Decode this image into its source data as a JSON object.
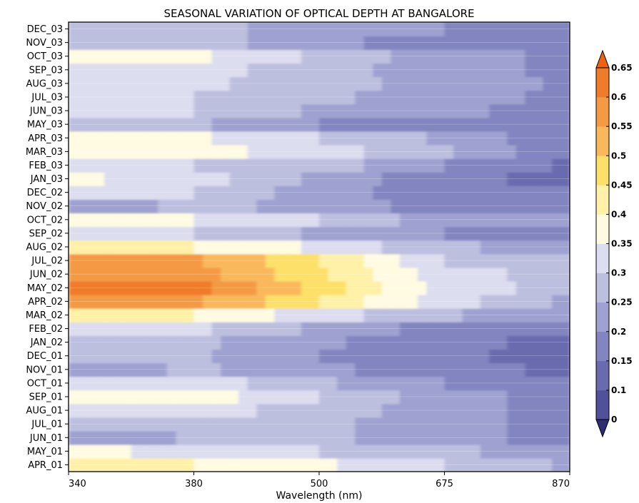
{
  "chart_data": {
    "type": "heatmap",
    "title": "SEASONAL VARIATION OF OPTICAL DEPTH AT BANGALORE",
    "xlabel": "Wavelength (nm)",
    "ylabel": "",
    "x_ticks": [
      "340",
      "380",
      "500",
      "675",
      "870"
    ],
    "y_categories": [
      "APR_01",
      "MAY_01",
      "JUN_01",
      "JUL_01",
      "AUG_01",
      "SEP_01",
      "OCT_01",
      "NOV_01",
      "DEC_01",
      "JAN_02",
      "FEB_02",
      "MAR_02",
      "APR_02",
      "MAY_02",
      "JUN_02",
      "JUL_02",
      "AUG_02",
      "SEP_02",
      "OCT_02",
      "NOV_02",
      "DEC_02",
      "JAN_03",
      "FEB_03",
      "MAR_03",
      "APR_03",
      "MAY_03",
      "JUN_03",
      "JUL_03",
      "AUG_03",
      "SEP_03",
      "OCT_03",
      "NOV_03",
      "DEC_03"
    ],
    "values": [
      [
        0.42,
        0.4,
        0.36,
        0.3,
        0.24
      ],
      [
        0.36,
        0.34,
        0.3,
        0.26,
        0.22
      ],
      [
        0.2,
        0.26,
        0.26,
        0.22,
        0.18
      ],
      [
        0.26,
        0.27,
        0.26,
        0.22,
        0.18
      ],
      [
        0.31,
        0.32,
        0.28,
        0.22,
        0.18
      ],
      [
        0.35,
        0.38,
        0.3,
        0.22,
        0.18
      ],
      [
        0.32,
        0.33,
        0.26,
        0.2,
        0.16
      ],
      [
        0.21,
        0.26,
        0.21,
        0.17,
        0.14
      ],
      [
        0.26,
        0.26,
        0.2,
        0.16,
        0.13
      ],
      [
        0.28,
        0.26,
        0.21,
        0.16,
        0.14
      ],
      [
        0.34,
        0.31,
        0.24,
        0.18,
        0.16
      ],
      [
        0.4,
        0.4,
        0.32,
        0.26,
        0.2
      ],
      [
        0.56,
        0.56,
        0.45,
        0.32,
        0.24
      ],
      [
        0.63,
        0.62,
        0.48,
        0.33,
        0.28
      ],
      [
        0.58,
        0.58,
        0.46,
        0.32,
        0.28
      ],
      [
        0.56,
        0.56,
        0.45,
        0.3,
        0.26
      ],
      [
        0.4,
        0.4,
        0.34,
        0.26,
        0.22
      ],
      [
        0.32,
        0.3,
        0.24,
        0.2,
        0.16
      ],
      [
        0.36,
        0.35,
        0.3,
        0.22,
        0.2
      ],
      [
        0.2,
        0.27,
        0.23,
        0.18,
        0.16
      ],
      [
        0.3,
        0.3,
        0.22,
        0.17,
        0.15
      ],
      [
        0.36,
        0.32,
        0.24,
        0.16,
        0.14
      ],
      [
        0.3,
        0.3,
        0.28,
        0.2,
        0.14
      ],
      [
        0.37,
        0.37,
        0.32,
        0.26,
        0.16
      ],
      [
        0.37,
        0.36,
        0.3,
        0.24,
        0.16
      ],
      [
        0.26,
        0.26,
        0.2,
        0.17,
        0.15
      ],
      [
        0.3,
        0.3,
        0.24,
        0.21,
        0.18
      ],
      [
        0.3,
        0.3,
        0.26,
        0.22,
        0.19
      ],
      [
        0.31,
        0.31,
        0.27,
        0.23,
        0.19
      ],
      [
        0.3,
        0.32,
        0.27,
        0.22,
        0.19
      ],
      [
        0.37,
        0.36,
        0.29,
        0.22,
        0.19
      ],
      [
        0.3,
        0.28,
        0.21,
        0.18,
        0.17
      ],
      [
        0.27,
        0.27,
        0.22,
        0.2,
        0.18
      ]
    ],
    "colorbar": {
      "ticks": [
        "0",
        "0.1",
        "0.15",
        "0.2",
        "0.25",
        "0.3",
        "0.35",
        "0.4",
        "0.45",
        "0.5",
        "0.55",
        "0.6",
        "0.65"
      ],
      "levels": [
        0,
        0.1,
        0.15,
        0.2,
        0.25,
        0.3,
        0.35,
        0.4,
        0.45,
        0.5,
        0.55,
        0.6,
        0.65
      ],
      "colors": [
        "#2e2d72",
        "#51519a",
        "#6a6bae",
        "#8385c0",
        "#9fa2d0",
        "#bdbfdf",
        "#dcddef",
        "#fffbe2",
        "#fff1a8",
        "#fde06a",
        "#f9b85b",
        "#f49a44",
        "#ef7c2a",
        "#ec6412"
      ]
    }
  }
}
